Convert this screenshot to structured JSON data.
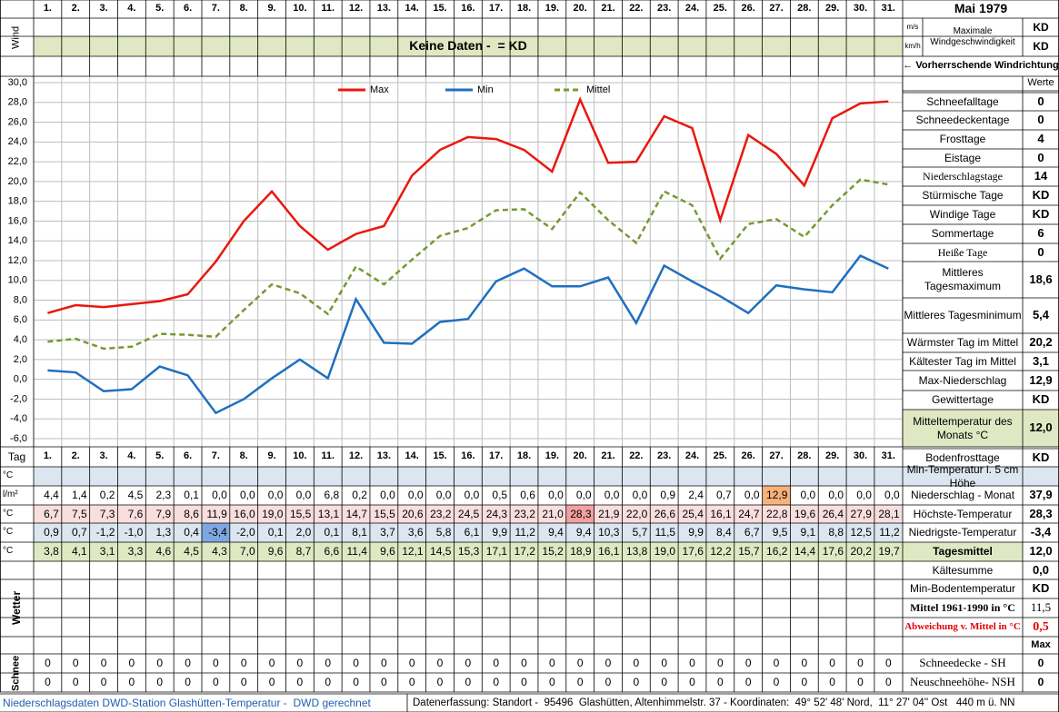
{
  "header": {
    "title": "Mai 1979"
  },
  "wind": {
    "label": "Wind",
    "no_data": "Keine Daten -  = KD",
    "units": [
      "m/s",
      "km/h"
    ],
    "max_label": "Maximale Windgeschwindigkeit",
    "values": [
      "KD",
      "KD"
    ],
    "direction": "← Vorherrschende Windrichtung"
  },
  "chart_data": {
    "type": "line",
    "categories": [
      "1.",
      "2.",
      "3.",
      "4.",
      "5.",
      "6.",
      "7.",
      "8.",
      "9.",
      "10.",
      "11.",
      "12.",
      "13.",
      "14.",
      "15.",
      "16.",
      "17.",
      "18.",
      "19.",
      "20.",
      "21.",
      "22.",
      "23.",
      "24.",
      "25.",
      "26.",
      "27.",
      "28.",
      "29.",
      "30.",
      "31."
    ],
    "series": [
      {
        "name": "Max",
        "color": "#e8180f",
        "style": "solid",
        "values": [
          6.7,
          7.5,
          7.3,
          7.6,
          7.9,
          8.6,
          11.9,
          16.0,
          19.0,
          15.5,
          13.1,
          14.7,
          15.5,
          20.6,
          23.2,
          24.5,
          24.3,
          23.2,
          21.0,
          28.3,
          21.9,
          22.0,
          26.6,
          25.4,
          16.1,
          24.7,
          22.8,
          19.6,
          26.4,
          27.9,
          28.1
        ]
      },
      {
        "name": "Min",
        "color": "#1f6fc0",
        "style": "solid",
        "values": [
          0.9,
          0.7,
          -1.2,
          -1.0,
          1.3,
          0.4,
          -3.4,
          -2.0,
          0.1,
          2.0,
          0.1,
          8.1,
          3.7,
          3.6,
          5.8,
          6.1,
          9.9,
          11.2,
          9.4,
          9.4,
          10.3,
          5.7,
          11.5,
          9.9,
          8.4,
          6.7,
          9.5,
          9.1,
          8.8,
          12.5,
          11.2
        ]
      },
      {
        "name": "Mittel",
        "color": "#779933",
        "style": "dashed",
        "values": [
          3.8,
          4.1,
          3.1,
          3.3,
          4.6,
          4.5,
          4.3,
          7.0,
          9.6,
          8.7,
          6.6,
          11.4,
          9.6,
          12.1,
          14.5,
          15.3,
          17.1,
          17.2,
          15.2,
          18.9,
          16.1,
          13.8,
          19.0,
          17.6,
          12.2,
          15.7,
          16.2,
          14.4,
          17.6,
          20.2,
          19.7
        ]
      }
    ],
    "ylim": [
      -6,
      30
    ],
    "yticks": [
      {
        "value": -6,
        "label": "-6,0"
      },
      {
        "value": -4,
        "label": "-4,0"
      },
      {
        "value": -2,
        "label": "-2,0"
      },
      {
        "value": 0,
        "label": "0,0"
      },
      {
        "value": 2,
        "label": "2,0"
      },
      {
        "value": 4,
        "label": "4,0"
      },
      {
        "value": 6,
        "label": "6,0"
      },
      {
        "value": 8,
        "label": "8,0"
      },
      {
        "value": 10,
        "label": "10,0"
      },
      {
        "value": 12,
        "label": "12,0"
      },
      {
        "value": 14,
        "label": "14,0"
      },
      {
        "value": 16,
        "label": "16,0"
      },
      {
        "value": 18,
        "label": "18,0"
      },
      {
        "value": 20,
        "label": "20,0"
      },
      {
        "value": 22,
        "label": "22,0"
      },
      {
        "value": 24,
        "label": "24,0"
      },
      {
        "value": 26,
        "label": "26,0"
      },
      {
        "value": 28,
        "label": "28,0"
      },
      {
        "value": 30,
        "label": "30,0"
      }
    ],
    "grid": true
  },
  "stats": {
    "header": "Werte",
    "rows": [
      {
        "label": "Schneefalltage",
        "value": 0
      },
      {
        "label": "Schneedeckentage",
        "value": 0
      },
      {
        "label": "Frosttage",
        "value": 4
      },
      {
        "label": "Eistage",
        "value": 0
      },
      {
        "label": "Niederschlagstage",
        "value": 14
      },
      {
        "label": "Stürmische Tage",
        "value": "KD"
      },
      {
        "label": "Windige Tage",
        "value": "KD"
      },
      {
        "label": "Sommertage",
        "value": 6
      },
      {
        "label": "Heiße Tage",
        "value": 0
      },
      {
        "label": "Mittleres Tagesmaximum",
        "value": "18,6"
      },
      {
        "label": "Mittleres Tagesminimum",
        "value": "5,4"
      },
      {
        "label": "Wärmster Tag im Mittel",
        "value": "20,2"
      },
      {
        "label": "Kältester Tag im Mittel",
        "value": "3,1"
      },
      {
        "label": "Max-Niederschlag",
        "value": "12,9"
      },
      {
        "label": "Gewittertage",
        "value": "KD"
      },
      {
        "label": "Mitteltemperatur des Monats °C",
        "value": "12,0"
      },
      {
        "label": "Bodenfrosttage",
        "value": "KD"
      }
    ]
  },
  "table": {
    "day_label": "Tag",
    "rows": [
      {
        "unit": "°C",
        "label": "Min-Temperatur i. 5 cm Höhe"
      },
      {
        "unit": "l/m²",
        "label": "Niederschlag - Monat",
        "total": "37,9",
        "cells": [
          "4,4",
          "1,4",
          "0,2",
          "4,5",
          "2,3",
          "0,1",
          "0,0",
          "0,0",
          "0,0",
          "0,0",
          "6,8",
          "0,2",
          "0,0",
          "0,0",
          "0,0",
          "0,0",
          "0,5",
          "0,6",
          "0,0",
          "0,0",
          "0,0",
          "0,0",
          "0,9",
          "2,4",
          "0,7",
          "0,0",
          "12,9",
          "0,0",
          "0,0",
          "0,0",
          "0,0"
        ]
      },
      {
        "unit": "°C",
        "label": "Höchste-Temperatur",
        "total": "28,3",
        "cells": [
          "6,7",
          "7,5",
          "7,3",
          "7,6",
          "7,9",
          "8,6",
          "11,9",
          "16,0",
          "19,0",
          "15,5",
          "13,1",
          "14,7",
          "15,5",
          "20,6",
          "23,2",
          "24,5",
          "24,3",
          "23,2",
          "21,0",
          "28,3",
          "21,9",
          "22,0",
          "26,6",
          "25,4",
          "16,1",
          "24,7",
          "22,8",
          "19,6",
          "26,4",
          "27,9",
          "28,1"
        ]
      },
      {
        "unit": "°C",
        "label": "Niedrigste-Temperatur",
        "total": "-3,4",
        "cells": [
          "0,9",
          "0,7",
          "-1,2",
          "-1,0",
          "1,3",
          "0,4",
          "-3,4",
          "-2,0",
          "0,1",
          "2,0",
          "0,1",
          "8,1",
          "3,7",
          "3,6",
          "5,8",
          "6,1",
          "9,9",
          "11,2",
          "9,4",
          "9,4",
          "10,3",
          "5,7",
          "11,5",
          "9,9",
          "8,4",
          "6,7",
          "9,5",
          "9,1",
          "8,8",
          "12,5",
          "11,2"
        ]
      },
      {
        "unit": "°C",
        "label": "Tagesmittel",
        "total": "12,0",
        "cells": [
          "3,8",
          "4,1",
          "3,1",
          "3,3",
          "4,6",
          "4,5",
          "4,3",
          "7,0",
          "9,6",
          "8,7",
          "6,6",
          "11,4",
          "9,6",
          "12,1",
          "14,5",
          "15,3",
          "17,1",
          "17,2",
          "15,2",
          "18,9",
          "16,1",
          "13,8",
          "19,0",
          "17,6",
          "12,2",
          "15,7",
          "16,2",
          "14,4",
          "17,6",
          "20,2",
          "19,7"
        ]
      }
    ]
  },
  "summary": {
    "weather_label": "Wetter",
    "rows": [
      {
        "label": "Kältesumme",
        "value": "0,0"
      },
      {
        "label": "Min-Bodentemperatur",
        "value": "KD"
      },
      {
        "label": "Mittel 1961-1990 in °C",
        "value": "11,5"
      },
      {
        "label": "Abweichung v. Mittel in °C",
        "value": "0,5"
      }
    ],
    "max_header": "Max"
  },
  "snow": {
    "label": "Schnee",
    "rows": [
      {
        "label": "Schneedecke - SH",
        "total": 0,
        "cells": [
          0,
          0,
          0,
          0,
          0,
          0,
          0,
          0,
          0,
          0,
          0,
          0,
          0,
          0,
          0,
          0,
          0,
          0,
          0,
          0,
          0,
          0,
          0,
          0,
          0,
          0,
          0,
          0,
          0,
          0,
          0
        ]
      },
      {
        "label": "Neuschneehöhe- NSH",
        "total": 0,
        "cells": [
          0,
          0,
          0,
          0,
          0,
          0,
          0,
          0,
          0,
          0,
          0,
          0,
          0,
          0,
          0,
          0,
          0,
          0,
          0,
          0,
          0,
          0,
          0,
          0,
          0,
          0,
          0,
          0,
          0,
          0,
          0
        ]
      }
    ]
  },
  "footer": {
    "source": "Niederschlagsdaten DWD-Station Glashütten-Temperatur -  DWD gerechnet",
    "location": "Datenerfassung: Standort -  95496  Glashütten, Altenhimmelstr. 37 - Koordinaten:  49° 52' 48' Nord,  11° 27' 04'' Ost   440 m ü. NN"
  }
}
